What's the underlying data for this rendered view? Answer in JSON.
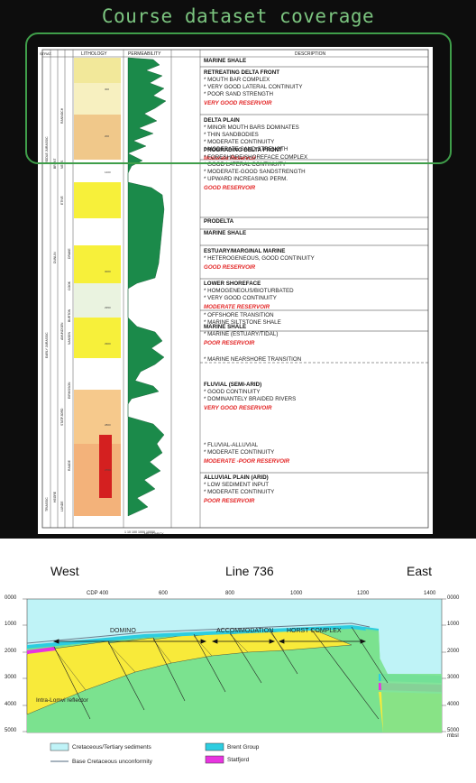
{
  "title": "Course dataset coverage",
  "log_headers": {
    "strat": "STRAT.",
    "lithology": "LITHOLOGY",
    "permeability": "PERMEABILITY",
    "description": "DESCRIPTION",
    "perm_axis": "1   10   100   1000 10000",
    "perm_unit": "MILLIDARCY"
  },
  "strat_labels": [
    "MIDDLE JURASSIC",
    "BRENT",
    "NESS",
    "RANNOCH",
    "ETIVE",
    "DRAKE",
    "DUNLIN",
    "COOK",
    "BURTON",
    "AMUNDSEN",
    "EARLY JURASSIC",
    "STATFJORD",
    "EIRIKSSON",
    "NANSEN",
    "RAUDE",
    "TRIASSIC",
    "HEGRE",
    "LUNDE"
  ],
  "intervals": [
    {
      "heading": "MARINE SHALE",
      "bullets": [],
      "rating": ""
    },
    {
      "heading": "RETREATING DELTA FRONT",
      "bullets": [
        "MOUTH BAR COMPLEX",
        "VERY GOOD LATERAL CONTINUITY",
        "POOR SAND STRENGTH"
      ],
      "rating": "VERY GOOD RESERVOIR"
    },
    {
      "heading": "DELTA PLAIN",
      "bullets": [
        "MINOR MOUTH BARS DOMINATES",
        "THIN SANDBODIES",
        "MODERATE CONTINUITY",
        "MODERATE SAND STRENGTH"
      ],
      "rating": "Moderate Reservoir"
    },
    {
      "heading": "PROGRADING DELTA FRONT",
      "bullets": [
        "FORESHORE/SHOREFACE COMPLEX",
        "GOOD LATERAL CONTINUITY",
        "MODERATE-GOOD SANDSTRENGTH",
        "UPWARD INCREASING PERM."
      ],
      "rating": "GOOD RESERVOIR"
    },
    {
      "heading": "PRODELTA",
      "bullets": [],
      "rating": ""
    },
    {
      "heading": "MARINE SHALE",
      "bullets": [],
      "rating": ""
    },
    {
      "heading": "ESTUARY/MARGINAL MARINE",
      "bullets": [
        "HETEROGENEOUS, GOOD CONTINUITY"
      ],
      "rating": "GOOD RESERVOIR"
    },
    {
      "heading": "LOWER SHOREFACE",
      "bullets": [
        "HOMOGENEOUS/BIOTURBATED",
        "VERY GOOD CONTINUITY"
      ],
      "rating": "MODERATE RESERVOIR"
    },
    {
      "heading": "",
      "bullets": [
        "OFFSHORE TRANSITION",
        "MARINE SILTSTONE SHALE"
      ],
      "rating": ""
    },
    {
      "heading": "MARINE SHALE",
      "bullets": [
        "MARINE (ESTUARY/TIDAL)"
      ],
      "rating": "POOR RESERVOIR"
    },
    {
      "heading": "",
      "bullets": [
        "MARINE NEARSHORE TRANSITION"
      ],
      "rating": ""
    },
    {
      "heading": "FLUVIAL (SEMI-ARID)",
      "bullets": [
        "GOOD CONTINUITY",
        "DOMINANTELY BRAIDED RIVERS"
      ],
      "rating": "VERY GOOD RESERVOIR"
    },
    {
      "heading": "",
      "bullets": [
        "FLUVIAL-ALLUVIAL",
        "MODERATE CONTINUITY"
      ],
      "rating": "MODERATE -POOR RESERVOIR"
    },
    {
      "heading": "ALLUVIAL PLAIN (ARID)",
      "bullets": [
        "LOW SEDIMENT INPUT",
        "MODERATE CONTINUITY"
      ],
      "rating": "POOR RESERVOIR"
    }
  ],
  "section": {
    "west": "West",
    "line": "Line 736",
    "east": "East",
    "cdp_label": "CDP 400",
    "cdp_ticks": [
      "600",
      "800",
      "1000",
      "1200",
      "1400"
    ],
    "depth_ticks": [
      "0000",
      "1000",
      "2000",
      "3000",
      "4000",
      "5000"
    ],
    "depth_unit": "mbsl",
    "zones": [
      "DOMINO",
      "ACCOMMODATION",
      "HORST COMPLEX"
    ],
    "reflector": "Intra-Lomvi reflector",
    "legend": [
      {
        "label": "Cretaceous/Tertiary sediments",
        "color": "#bff3f7"
      },
      {
        "label": "Base Cretaceous unconformity",
        "color": "#8a9aa8"
      },
      {
        "label": "Brent Group",
        "color": "#2dcde0"
      },
      {
        "label": "Statfjord",
        "color": "#e834e0"
      }
    ],
    "colors": {
      "sand": "#f8ea3a",
      "green": "#7be28f",
      "water": "#bff3f7"
    }
  }
}
